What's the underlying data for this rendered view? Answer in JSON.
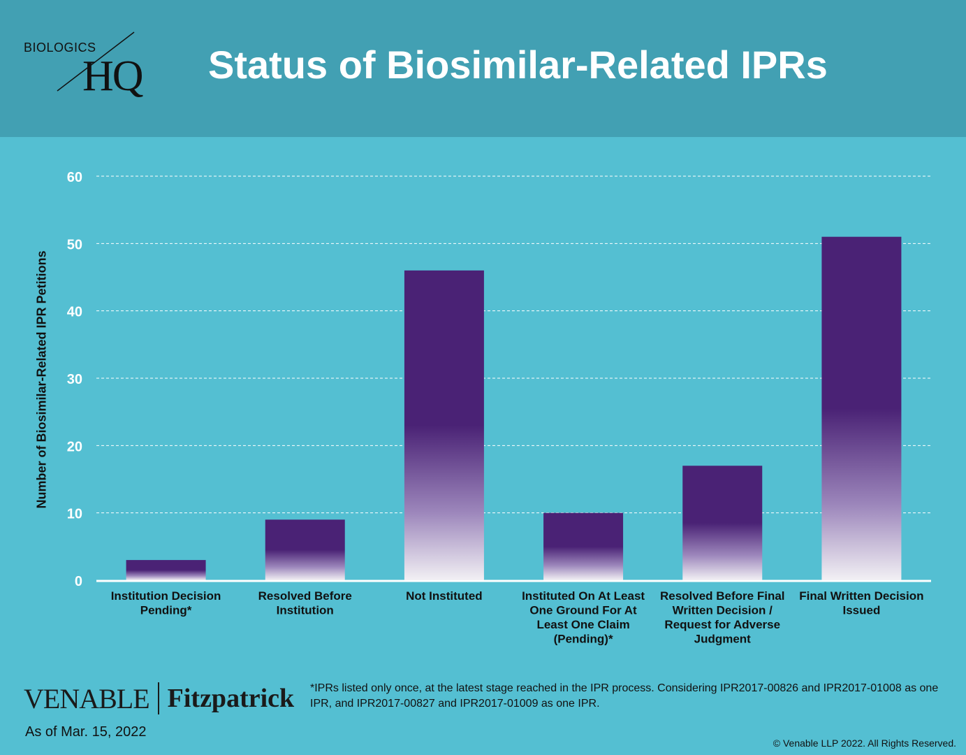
{
  "header": {
    "logo_top": "BIOLOGICS",
    "logo_main": "HQ",
    "title": "Status of Biosimilar-Related IPRs"
  },
  "colors": {
    "header_bg": "#42a0b3",
    "body_bg": "#54bfd2",
    "bar_top": "#4a2275",
    "bar_bottom": "#f2f0f4"
  },
  "chart_data": {
    "type": "bar",
    "title": "Status of Biosimilar-Related IPRs",
    "xlabel": "",
    "ylabel": "Number of Biosimilar-Related  IPR Petitions",
    "ylim": [
      0,
      60
    ],
    "yticks": [
      0,
      10,
      20,
      30,
      40,
      50,
      60
    ],
    "grid": true,
    "categories": [
      [
        "Institution Decision",
        "Pending*"
      ],
      [
        "Resolved Before",
        "Institution"
      ],
      [
        "Not Instituted"
      ],
      [
        "Instituted On At Least",
        "One Ground For At",
        "Least One Claim",
        "(Pending)*"
      ],
      [
        "Resolved Before Final",
        "Written Decision /",
        "Request for Adverse",
        "Judgment"
      ],
      [
        "Final Written Decision",
        "Issued"
      ]
    ],
    "values": [
      3,
      9,
      46,
      10,
      17,
      51
    ]
  },
  "footer": {
    "brand_left": "VENABLE",
    "brand_right": "Fitzpatrick",
    "as_of": "As of Mar. 15, 2022",
    "footnote": "*IPRs listed only once, at the latest stage reached in the IPR process.  Considering IPR2017-00826 and IPR2017-01008 as one IPR, and IPR2017-00827 and IPR2017-01009 as one IPR.",
    "copyright": "© Venable LLP 2022. All Rights Reserved."
  }
}
